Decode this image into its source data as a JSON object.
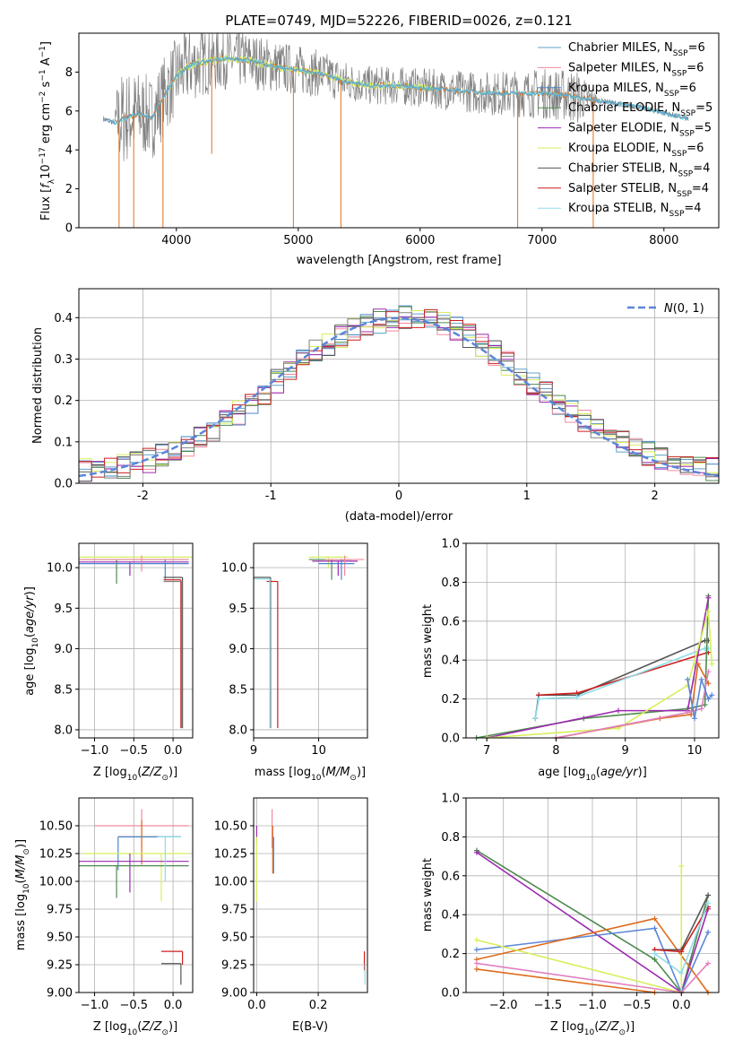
{
  "figure": {
    "title": "PLATE=0749, MJD=52226, FIBERID=0026, z=0.121",
    "palette": {
      "chabrier_miles": "#5fa0c8",
      "salpeter_miles": "#f08aa0",
      "kroupa_miles": "#4a86c8",
      "chabrier_elodie": "#4f8a4f",
      "salpeter_elodie": "#9c2ab0",
      "kroupa_elodie": "#d6ef5a",
      "chabrier_stelib": "#555555",
      "salpeter_stelib": "#cc1f1f",
      "kroupa_stelib": "#8fdde8",
      "data_grey": "#808080",
      "model_orange": "#e07020",
      "model_cyan": "#70d8e0",
      "pw_blue": "#5b86d8",
      "pw_orange": "#dd6c1e",
      "pw_pink": "#e080c0",
      "pw_purple": "#9c2ab0",
      "pw_green": "#4f8a4f",
      "pw_yellow": "#d6ef5a",
      "pw_dark": "#444444"
    }
  },
  "chart_data": [
    {
      "type": "line",
      "id": "spectrum",
      "xlabel": "wavelength [Angstrom, rest frame]",
      "ylabel": "Flux [f_λ 10^-17 erg cm^-2 s^-1 A^-1]",
      "xlim": [
        3200,
        8450
      ],
      "ylim": [
        0,
        10
      ],
      "xticks": [
        4000,
        5000,
        6000,
        7000,
        8000
      ],
      "yticks": [
        0,
        2,
        4,
        6,
        8
      ],
      "grid": false,
      "legend_position": "top-right",
      "legend": [
        {
          "label": "Chabrier MILES, N_SSP=6",
          "color_key": "chabrier_miles"
        },
        {
          "label": "Salpeter MILES, N_SSP=6",
          "color_key": "salpeter_miles"
        },
        {
          "label": "Kroupa MILES, N_SSP=6",
          "color_key": "kroupa_miles"
        },
        {
          "label": "Chabrier ELODIE, N_SSP=5",
          "color_key": "chabrier_elodie"
        },
        {
          "label": "Salpeter ELODIE, N_SSP=5",
          "color_key": "salpeter_elodie"
        },
        {
          "label": "Kroupa ELODIE, N_SSP=6",
          "color_key": "kroupa_elodie"
        },
        {
          "label": "Chabrier STELIB, N_SSP=4",
          "color_key": "chabrier_stelib"
        },
        {
          "label": "Salpeter STELIB, N_SSP=4",
          "color_key": "salpeter_stelib"
        },
        {
          "label": "Kroupa STELIB, N_SSP=4",
          "color_key": "kroupa_stelib"
        }
      ],
      "continuum": {
        "x": [
          3400,
          3500,
          3600,
          3700,
          3800,
          3900,
          4000,
          4100,
          4200,
          4400,
          4600,
          4800,
          5000,
          5200,
          5400,
          5600,
          5800,
          6000,
          6200,
          6400,
          6600,
          6800,
          7000,
          7200,
          7400,
          7600,
          7800,
          8000,
          8200
        ],
        "y": [
          5.6,
          5.4,
          5.7,
          5.9,
          5.6,
          6.8,
          7.8,
          8.3,
          8.5,
          8.7,
          8.6,
          8.3,
          8.1,
          7.9,
          7.5,
          7.3,
          7.3,
          7.2,
          7.1,
          7.0,
          6.9,
          6.9,
          6.9,
          6.8,
          6.6,
          6.4,
          6.2,
          5.9,
          5.6
        ]
      },
      "noise_amplitude": {
        "x": [
          3400,
          3550,
          3700,
          4000,
          4500,
          5000,
          5500,
          6000,
          6500,
          7000,
          7300,
          7450
        ],
        "y": [
          0.2,
          2.5,
          2.2,
          2.0,
          1.5,
          1.3,
          1.0,
          1.0,
          1.1,
          1.3,
          1.4,
          0.3
        ]
      },
      "dips": [
        {
          "x": 3530,
          "y": 0.0
        },
        {
          "x": 3650,
          "y": 0.0
        },
        {
          "x": 3890,
          "y": 0.0
        },
        {
          "x": 4290,
          "y": 3.8
        },
        {
          "x": 4960,
          "y": 0.0
        },
        {
          "x": 5350,
          "y": 0.0
        },
        {
          "x": 6800,
          "y": 0.0
        },
        {
          "x": 7420,
          "y": 0.0
        }
      ]
    },
    {
      "type": "area",
      "id": "residual-histogram",
      "xlabel": "(data-model)/error",
      "ylabel": "Normed distribution",
      "xlim": [
        -2.5,
        2.5
      ],
      "ylim": [
        0,
        0.47
      ],
      "xticks": [
        -2,
        -1,
        0,
        1,
        2
      ],
      "yticks": [
        0.0,
        0.1,
        0.2,
        0.3,
        0.4
      ],
      "grid": true,
      "legend_position": "top-right",
      "gaussian_label": "N(0,1)",
      "bin_edges_start": -2.5,
      "bin_width": 0.1,
      "envelope": [
        0.03,
        0.032,
        0.036,
        0.04,
        0.046,
        0.055,
        0.068,
        0.082,
        0.095,
        0.11,
        0.128,
        0.148,
        0.17,
        0.195,
        0.22,
        0.245,
        0.27,
        0.295,
        0.318,
        0.338,
        0.355,
        0.372,
        0.385,
        0.392,
        0.398,
        0.4,
        0.398,
        0.392,
        0.385,
        0.372,
        0.355,
        0.336,
        0.315,
        0.29,
        0.265,
        0.24,
        0.215,
        0.192,
        0.17,
        0.15,
        0.132,
        0.114,
        0.098,
        0.084,
        0.072,
        0.062,
        0.054,
        0.046,
        0.04,
        0.035
      ],
      "series_colors": [
        "chabrier_miles",
        "salpeter_miles",
        "kroupa_miles",
        "chabrier_elodie",
        "salpeter_elodie",
        "kroupa_elodie",
        "chabrier_stelib",
        "salpeter_stelib",
        "data_grey"
      ]
    },
    {
      "type": "scatter",
      "id": "age-vs-metallicity",
      "xlabel": "Z [log10(Z/Z⊙)]",
      "ylabel": "age [log10(age/yr)]",
      "xlim": [
        -1.2,
        0.25
      ],
      "ylim": [
        7.9,
        10.3
      ],
      "xticks": [
        -1.0,
        -0.5,
        0.0
      ],
      "xticklabels": [
        "−1.0",
        "−0.5",
        "0.0"
      ],
      "yticks": [
        8.0,
        8.5,
        9.0,
        9.5,
        10.0
      ],
      "grid": true,
      "points": [
        {
          "x": -0.15,
          "y": 10.13,
          "xmin": -1.2,
          "xmax": 0.25,
          "ylo": 10.13,
          "yhi": 10.13,
          "color_key": "kroupa_elodie"
        },
        {
          "x": -0.72,
          "y": 10.1,
          "xmin": -1.2,
          "xmax": 0.2,
          "ylo": 9.8,
          "yhi": 10.1,
          "color_key": "chabrier_elodie"
        },
        {
          "x": -0.55,
          "y": 10.07,
          "xmin": -1.2,
          "xmax": 0.2,
          "ylo": 9.9,
          "yhi": 10.07,
          "color_key": "salpeter_elodie"
        },
        {
          "x": -0.4,
          "y": 10.1,
          "xmin": -1.2,
          "xmax": 0.2,
          "ylo": 9.95,
          "yhi": 10.15,
          "color_key": "salpeter_miles"
        },
        {
          "x": -0.1,
          "y": 10.05,
          "xmin": -1.2,
          "xmax": 0.2,
          "ylo": 9.85,
          "yhi": 10.1,
          "color_key": "kroupa_miles"
        },
        {
          "x": 0.12,
          "y": 9.88,
          "xmin": -0.12,
          "xmax": 0.12,
          "ylo": 8.02,
          "yhi": 9.88,
          "color_key": "chabrier_stelib"
        },
        {
          "x": 0.1,
          "y": 9.85,
          "xmin": -0.12,
          "xmax": 0.1,
          "ylo": 8.02,
          "yhi": 9.85,
          "color_key": "salpeter_stelib"
        },
        {
          "x": 0.11,
          "y": 9.83,
          "xmin": -0.12,
          "xmax": 0.11,
          "ylo": 8.02,
          "yhi": 9.83,
          "color_key": "data_grey"
        }
      ]
    },
    {
      "type": "scatter",
      "id": "age-vs-mass",
      "xlabel": "mass [log10(M/M⊙)]",
      "ylabel": "",
      "xlim": [
        9.0,
        10.75
      ],
      "ylim": [
        7.9,
        10.3
      ],
      "xticks": [
        9,
        10
      ],
      "yticks": [
        8.0,
        8.5,
        9.0,
        9.5,
        10.0
      ],
      "grid": true,
      "points": [
        {
          "x": 10.15,
          "y": 10.13,
          "xmin": 9.85,
          "xmax": 10.45,
          "ylo": 10.0,
          "yhi": 10.13,
          "color_key": "kroupa_elodie"
        },
        {
          "x": 10.2,
          "y": 10.1,
          "xmin": 9.85,
          "xmax": 10.5,
          "ylo": 9.85,
          "yhi": 10.1,
          "color_key": "chabrier_elodie"
        },
        {
          "x": 10.3,
          "y": 10.08,
          "xmin": 9.9,
          "xmax": 10.6,
          "ylo": 9.9,
          "yhi": 10.08,
          "color_key": "salpeter_elodie"
        },
        {
          "x": 10.4,
          "y": 10.1,
          "xmin": 10.1,
          "xmax": 10.7,
          "ylo": 9.9,
          "yhi": 10.15,
          "color_key": "salpeter_miles"
        },
        {
          "x": 10.35,
          "y": 10.05,
          "xmin": 10.0,
          "xmax": 10.55,
          "ylo": 9.85,
          "yhi": 10.1,
          "color_key": "kroupa_miles"
        },
        {
          "x": 9.26,
          "y": 9.88,
          "xmin": 9.0,
          "xmax": 9.26,
          "ylo": 8.02,
          "yhi": 9.88,
          "color_key": "chabrier_stelib"
        },
        {
          "x": 9.37,
          "y": 9.83,
          "xmin": 9.2,
          "xmax": 9.37,
          "ylo": 8.02,
          "yhi": 9.83,
          "color_key": "salpeter_stelib"
        },
        {
          "x": 9.25,
          "y": 9.86,
          "xmin": 9.0,
          "xmax": 9.25,
          "ylo": 8.02,
          "yhi": 9.86,
          "color_key": "kroupa_stelib"
        }
      ]
    },
    {
      "type": "line",
      "id": "mass-weight-vs-age",
      "xlabel": "age  [log10(age/yr)]",
      "ylabel": "mass weight",
      "xlim": [
        6.7,
        10.35
      ],
      "ylim": [
        0,
        1.0
      ],
      "xticks": [
        7,
        8,
        9,
        10
      ],
      "yticks": [
        0.0,
        0.2,
        0.4,
        0.6,
        0.8,
        1.0
      ],
      "grid": true,
      "series": [
        {
          "color_key": "chabrier_stelib",
          "x": [
            7.7,
            7.75,
            8.3,
            10.15,
            10.2
          ],
          "y": [
            0.1,
            0.22,
            0.22,
            0.5,
            0.5
          ]
        },
        {
          "color_key": "salpeter_stelib",
          "x": [
            7.75,
            8.3,
            10.2
          ],
          "y": [
            0.22,
            0.23,
            0.44
          ]
        },
        {
          "color_key": "kroupa_stelib",
          "x": [
            7.7,
            7.75,
            8.3,
            10.15,
            10.2
          ],
          "y": [
            0.1,
            0.2,
            0.21,
            0.46,
            0.46
          ]
        },
        {
          "color_key": "chabrier_elodie",
          "x": [
            6.85,
            8.4,
            9.9,
            10.15,
            10.2
          ],
          "y": [
            0.0,
            0.1,
            0.15,
            0.17,
            0.73
          ]
        },
        {
          "color_key": "salpeter_elodie",
          "x": [
            7.0,
            8.9,
            9.9,
            10.2
          ],
          "y": [
            0.0,
            0.14,
            0.14,
            0.72
          ]
        },
        {
          "color_key": "kroupa_elodie",
          "x": [
            7.0,
            8.9,
            9.9,
            10.2,
            10.25
          ],
          "y": [
            0.0,
            0.05,
            0.27,
            0.65,
            0.38
          ]
        },
        {
          "color_key": "pw_orange",
          "x": [
            8.0,
            9.5,
            9.95,
            10.05,
            10.2
          ],
          "y": [
            0.0,
            0.1,
            0.12,
            0.38,
            0.28
          ]
        },
        {
          "color_key": "pw_pink",
          "x": [
            8.0,
            9.9,
            10.1,
            10.2
          ],
          "y": [
            0.0,
            0.13,
            0.15,
            0.34
          ]
        },
        {
          "color_key": "pw_blue",
          "x": [
            9.9,
            10.0,
            10.1,
            10.2,
            10.25
          ],
          "y": [
            0.3,
            0.1,
            0.3,
            0.2,
            0.22
          ]
        }
      ]
    },
    {
      "type": "scatter",
      "id": "mass-vs-metallicity",
      "xlabel": "Z [log10(Z/Z⊙)]",
      "ylabel": "mass [log10(M/M⊙)]",
      "xlim": [
        -1.2,
        0.25
      ],
      "ylim": [
        9.0,
        10.75
      ],
      "xticks": [
        -1.0,
        -0.5,
        0.0
      ],
      "xticklabels": [
        "−1.0",
        "−0.5",
        "0.0"
      ],
      "yticks": [
        9.0,
        9.25,
        9.5,
        9.75,
        10.0,
        10.25,
        10.5
      ],
      "grid": true,
      "points": [
        {
          "x": -0.4,
          "y": 10.5,
          "xmin": -1.0,
          "xmax": 0.2,
          "ylo": 10.3,
          "yhi": 10.65,
          "color_key": "salpeter_miles"
        },
        {
          "x": -0.4,
          "y": 10.4,
          "xmin": -0.7,
          "xmax": 0.1,
          "ylo": 10.15,
          "yhi": 10.55,
          "color_key": "pw_orange"
        },
        {
          "x": -0.7,
          "y": 10.4,
          "xmin": -0.7,
          "xmax": 0.1,
          "ylo": 10.1,
          "yhi": 10.4,
          "color_key": "kroupa_miles"
        },
        {
          "x": -0.15,
          "y": 10.25,
          "xmin": -1.15,
          "xmax": 0.2,
          "ylo": 9.82,
          "yhi": 10.25,
          "color_key": "kroupa_elodie"
        },
        {
          "x": -0.55,
          "y": 10.18,
          "xmin": -1.2,
          "xmax": 0.2,
          "ylo": 9.9,
          "yhi": 10.25,
          "color_key": "salpeter_elodie"
        },
        {
          "x": -0.72,
          "y": 10.14,
          "xmin": -1.2,
          "xmax": 0.2,
          "ylo": 9.85,
          "yhi": 10.14,
          "color_key": "chabrier_elodie"
        },
        {
          "x": -0.1,
          "y": 10.4,
          "xmin": -0.2,
          "xmax": 0.1,
          "ylo": 10.0,
          "yhi": 10.4,
          "color_key": "kroupa_stelib"
        },
        {
          "x": 0.12,
          "y": 9.37,
          "xmin": -0.15,
          "xmax": 0.12,
          "ylo": 9.25,
          "yhi": 9.37,
          "color_key": "salpeter_stelib"
        },
        {
          "x": 0.1,
          "y": 9.26,
          "xmin": -0.15,
          "xmax": 0.1,
          "ylo": 9.07,
          "yhi": 9.26,
          "color_key": "chabrier_stelib"
        }
      ]
    },
    {
      "type": "scatter",
      "id": "mass-vs-ebv",
      "xlabel": "E(B-V)",
      "ylabel": "",
      "xlim": [
        -0.01,
        0.36
      ],
      "ylim": [
        9.0,
        10.75
      ],
      "xticks": [
        0.0,
        0.2
      ],
      "xticklabels": [
        "0.0",
        "0.2"
      ],
      "yticks": [
        9.0,
        9.25,
        9.5,
        9.75,
        10.0,
        10.25,
        10.5
      ],
      "grid": true,
      "points": [
        {
          "x": 0.0,
          "y": 10.45,
          "xmin": 0.0,
          "xmax": 0.0,
          "ylo": 10.35,
          "yhi": 10.5,
          "color_key": "salpeter_elodie"
        },
        {
          "x": 0.0,
          "y": 10.25,
          "xmin": 0.0,
          "xmax": 0.0,
          "ylo": 9.82,
          "yhi": 10.4,
          "color_key": "kroupa_elodie"
        },
        {
          "x": 0.05,
          "y": 10.5,
          "xmin": 0.05,
          "xmax": 0.05,
          "ylo": 10.3,
          "yhi": 10.65,
          "color_key": "salpeter_miles"
        },
        {
          "x": 0.052,
          "y": 10.5,
          "xmin": 0.052,
          "xmax": 0.052,
          "ylo": 10.07,
          "yhi": 10.5,
          "color_key": "pw_orange"
        },
        {
          "x": 0.055,
          "y": 10.4,
          "xmin": 0.055,
          "xmax": 0.055,
          "ylo": 10.07,
          "yhi": 10.4,
          "color_key": "kroupa_miles"
        },
        {
          "x": 0.35,
          "y": 9.37,
          "xmin": 0.35,
          "xmax": 0.35,
          "ylo": 9.2,
          "yhi": 9.37,
          "color_key": "salpeter_stelib"
        },
        {
          "x": 0.352,
          "y": 9.26,
          "xmin": 0.352,
          "xmax": 0.352,
          "ylo": 9.07,
          "yhi": 9.26,
          "color_key": "kroupa_stelib"
        }
      ]
    },
    {
      "type": "line",
      "id": "mass-weight-vs-metallicity",
      "xlabel": "Z [log10(Z/Z⊙)]",
      "ylabel": "mass weight",
      "xlim": [
        -2.42,
        0.42
      ],
      "ylim": [
        0,
        1.0
      ],
      "xticks": [
        -2.0,
        -1.5,
        -1.0,
        -0.5,
        0.0
      ],
      "xticklabels": [
        "−2.0",
        "−1.5",
        "−1.0",
        "−0.5",
        "0.0"
      ],
      "yticks": [
        0.0,
        0.2,
        0.4,
        0.6,
        0.8,
        1.0
      ],
      "grid": true,
      "series": [
        {
          "color_key": "chabrier_elodie",
          "x": [
            -2.3,
            -0.3,
            0.0,
            0.3
          ],
          "y": [
            0.73,
            0.17,
            0.0,
            0.5
          ]
        },
        {
          "color_key": "salpeter_elodie",
          "x": [
            -2.3,
            0.0,
            0.3
          ],
          "y": [
            0.72,
            0.0,
            0.43
          ]
        },
        {
          "color_key": "pw_blue",
          "x": [
            -2.3,
            -0.3,
            0.0,
            0.3
          ],
          "y": [
            0.22,
            0.33,
            0.0,
            0.31
          ]
        },
        {
          "color_key": "pw_orange",
          "x": [
            -2.3,
            -0.3,
            0.3
          ],
          "y": [
            0.17,
            0.38,
            0.0
          ]
        },
        {
          "color_key": "pw_orange",
          "x": [
            -2.3,
            -0.3
          ],
          "y": [
            0.12,
            0.0
          ]
        },
        {
          "color_key": "kroupa_elodie",
          "x": [
            -2.3,
            0.0,
            0.0
          ],
          "y": [
            0.27,
            0.0,
            0.65
          ]
        },
        {
          "color_key": "pw_pink",
          "x": [
            -2.3,
            0.0,
            0.3
          ],
          "y": [
            0.15,
            0.0,
            0.15
          ]
        },
        {
          "color_key": "chabrier_stelib",
          "x": [
            -0.3,
            0.0,
            0.3
          ],
          "y": [
            0.22,
            0.22,
            0.5
          ]
        },
        {
          "color_key": "salpeter_stelib",
          "x": [
            -0.3,
            0.0,
            0.3
          ],
          "y": [
            0.22,
            0.21,
            0.44
          ]
        },
        {
          "color_key": "kroupa_stelib",
          "x": [
            -0.3,
            0.0,
            0.3
          ],
          "y": [
            0.2,
            0.1,
            0.46
          ]
        }
      ]
    }
  ]
}
